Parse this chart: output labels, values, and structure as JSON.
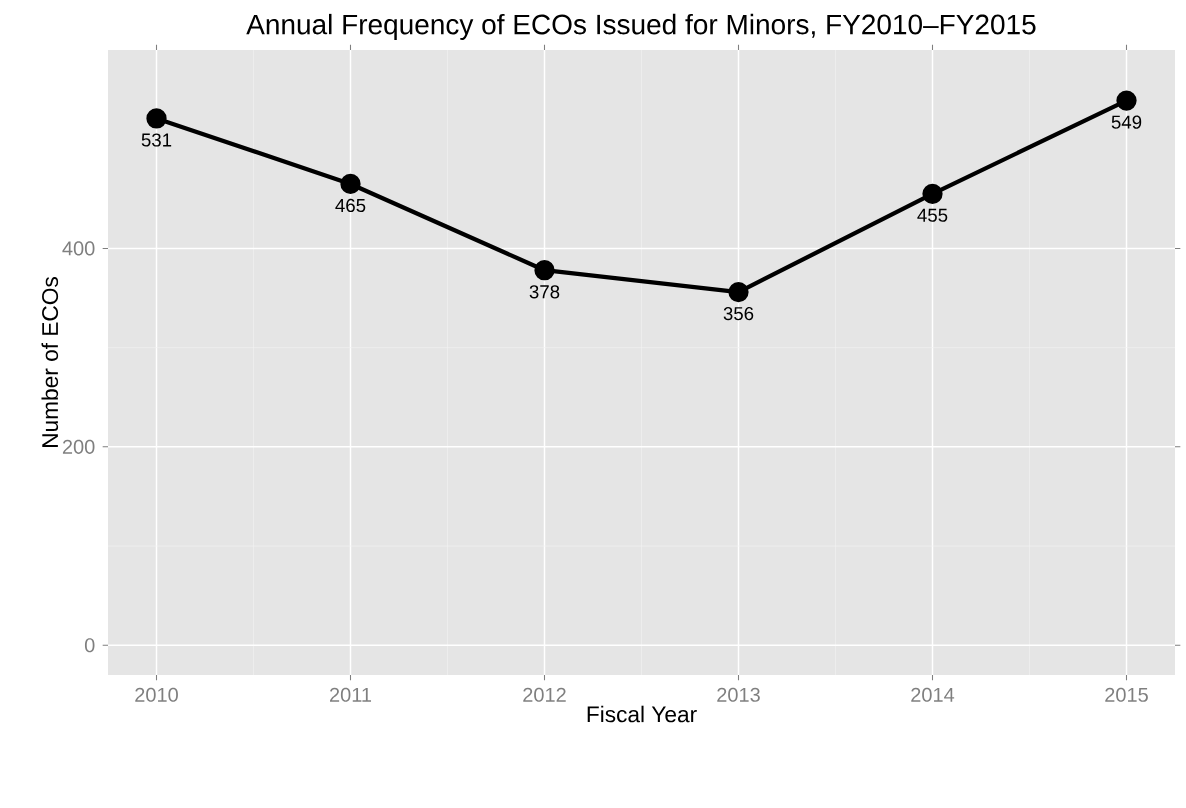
{
  "chart_data": {
    "type": "line",
    "title": "Annual Frequency of ECOs Issued for Minors, FY2010–FY2015",
    "xlabel": "Fiscal Year",
    "ylabel": "Number of ECOs",
    "x": [
      2010,
      2011,
      2012,
      2013,
      2014,
      2015
    ],
    "series": [
      {
        "color": "#000000",
        "values": [
          531,
          465,
          378,
          356,
          455,
          549
        ]
      }
    ],
    "xlim": [
      2009.75,
      2015.25
    ],
    "xticks": [
      2010,
      2011,
      2012,
      2013,
      2014,
      2015
    ],
    "ylim": [
      -30,
      600
    ],
    "yticks": [
      0,
      200,
      400
    ],
    "grid": true,
    "marker": "circle",
    "line_style": "solid",
    "data_labels": true
  }
}
